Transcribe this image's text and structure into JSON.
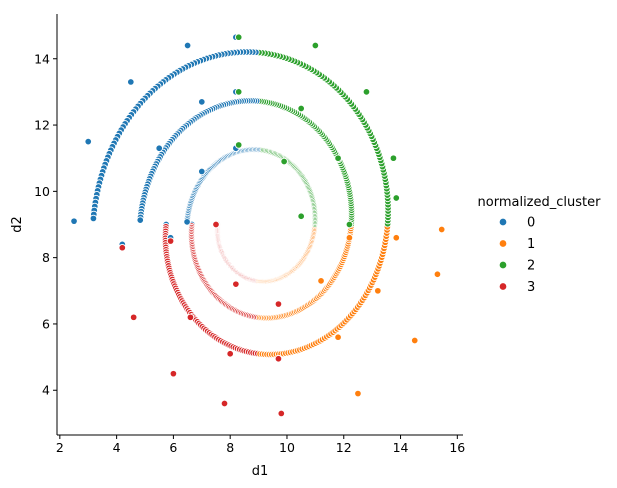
{
  "chart_data": {
    "type": "scatter",
    "xlabel": "d1",
    "ylabel": "d2",
    "xlim": [
      1.9,
      16.2
    ],
    "ylim": [
      2.65,
      15.35
    ],
    "xticks": [
      2,
      4,
      6,
      8,
      10,
      12,
      14,
      16
    ],
    "yticks": [
      4,
      6,
      8,
      10,
      12,
      14
    ],
    "grid": false,
    "legend": {
      "title": "normalized_cluster",
      "placement": "right"
    },
    "spiral": {
      "center": [
        9.0,
        9.0
      ],
      "t_start": 0.28,
      "t_end": 1.0,
      "arms": 3,
      "radius_step_per_turn": 1.65
    },
    "series": [
      {
        "name": "0",
        "color": "#1f77b4",
        "description_points": [
          [
            2.5,
            9.1
          ],
          [
            3.0,
            11.5
          ],
          [
            4.5,
            13.3
          ],
          [
            6.5,
            14.4
          ],
          [
            8.2,
            14.65
          ],
          [
            4.2,
            8.4
          ],
          [
            5.5,
            11.3
          ],
          [
            7.0,
            12.7
          ],
          [
            8.2,
            13.0
          ],
          [
            5.9,
            8.6
          ],
          [
            7.0,
            10.6
          ],
          [
            8.2,
            11.3
          ]
        ]
      },
      {
        "name": "1",
        "color": "#ff7f0e",
        "description_points": [
          [
            9.8,
            3.3
          ],
          [
            12.5,
            3.9
          ],
          [
            14.5,
            5.5
          ],
          [
            15.3,
            7.5
          ],
          [
            15.45,
            8.85
          ],
          [
            9.7,
            4.95
          ],
          [
            11.8,
            5.6
          ],
          [
            13.2,
            7.0
          ],
          [
            13.85,
            8.6
          ],
          [
            9.7,
            6.6
          ],
          [
            11.2,
            7.3
          ],
          [
            12.2,
            8.6
          ]
        ]
      },
      {
        "name": "2",
        "color": "#2ca02c",
        "description_points": [
          [
            8.3,
            14.65
          ],
          [
            11.0,
            14.4
          ],
          [
            12.8,
            13.0
          ],
          [
            13.75,
            11.0
          ],
          [
            13.85,
            9.8
          ],
          [
            8.3,
            13.0
          ],
          [
            10.5,
            12.5
          ],
          [
            11.8,
            11.0
          ],
          [
            12.2,
            9.0
          ],
          [
            8.3,
            11.4
          ],
          [
            9.9,
            10.9
          ],
          [
            10.5,
            9.25
          ]
        ]
      },
      {
        "name": "3",
        "color": "#d62728",
        "description_points": [
          [
            4.2,
            8.3
          ],
          [
            4.6,
            6.2
          ],
          [
            6.0,
            4.5
          ],
          [
            7.8,
            3.6
          ],
          [
            9.8,
            3.3
          ],
          [
            5.9,
            8.5
          ],
          [
            6.6,
            6.2
          ],
          [
            8.0,
            5.1
          ],
          [
            9.7,
            4.95
          ],
          [
            7.5,
            9.0
          ],
          [
            8.2,
            7.2
          ],
          [
            9.7,
            6.6
          ]
        ]
      }
    ]
  }
}
